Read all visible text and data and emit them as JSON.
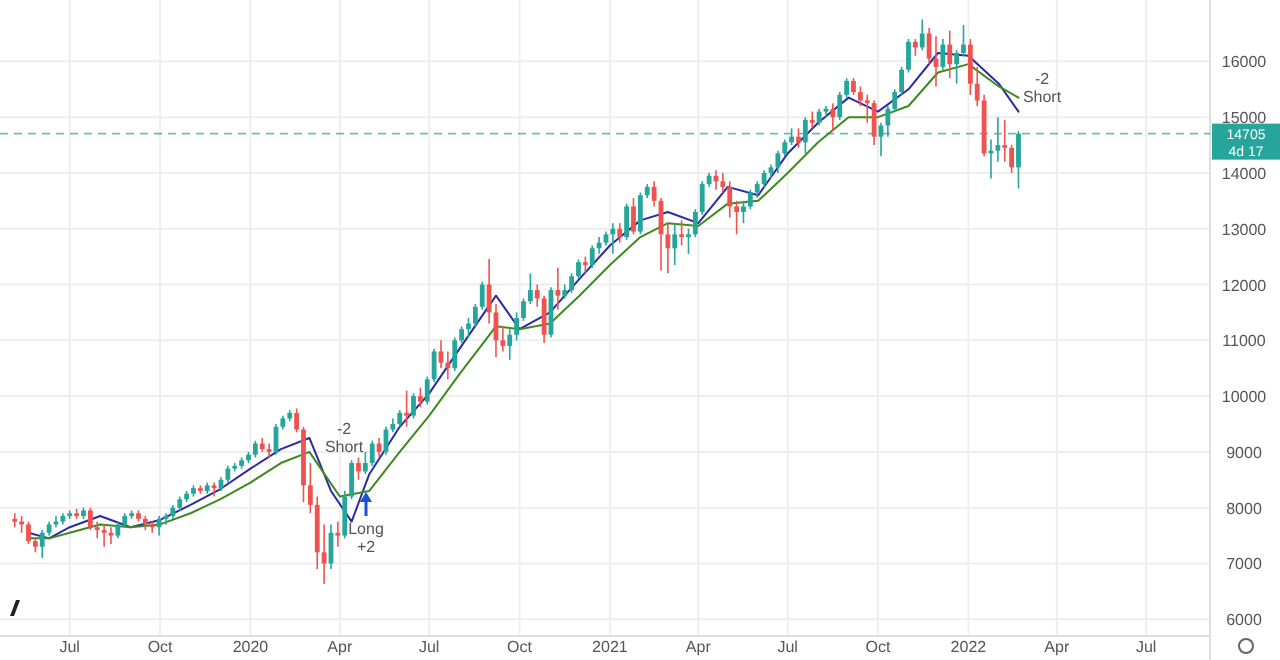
{
  "chart_data": {
    "type": "candlestick",
    "x": [
      "2019-05-06",
      "2019-05-13",
      "2019-05-20",
      "2019-05-27",
      "2019-06-03",
      "2019-06-10",
      "2019-06-17",
      "2019-06-24",
      "2019-07-01",
      "2019-07-08",
      "2019-07-15",
      "2019-07-22",
      "2019-07-29",
      "2019-08-05",
      "2019-08-12",
      "2019-08-19",
      "2019-08-26",
      "2019-09-02",
      "2019-09-09",
      "2019-09-16",
      "2019-09-23",
      "2019-09-30",
      "2019-10-07",
      "2019-10-14",
      "2019-10-21",
      "2019-10-28",
      "2019-11-04",
      "2019-11-11",
      "2019-11-18",
      "2019-11-25",
      "2019-12-02",
      "2019-12-09",
      "2019-12-16",
      "2019-12-23",
      "2019-12-30",
      "2020-01-06",
      "2020-01-13",
      "2020-01-20",
      "2020-01-27",
      "2020-02-03",
      "2020-02-10",
      "2020-02-17",
      "2020-02-24",
      "2020-03-02",
      "2020-03-09",
      "2020-03-16",
      "2020-03-23",
      "2020-03-30",
      "2020-04-06",
      "2020-04-13",
      "2020-04-20",
      "2020-04-27",
      "2020-05-04",
      "2020-05-11",
      "2020-05-18",
      "2020-05-25",
      "2020-06-01",
      "2020-06-08",
      "2020-06-15",
      "2020-06-22",
      "2020-06-29",
      "2020-07-06",
      "2020-07-13",
      "2020-07-20",
      "2020-07-27",
      "2020-08-03",
      "2020-08-10",
      "2020-08-17",
      "2020-08-24",
      "2020-08-31",
      "2020-09-07",
      "2020-09-14",
      "2020-09-21",
      "2020-09-28",
      "2020-10-05",
      "2020-10-12",
      "2020-10-19",
      "2020-10-26",
      "2020-11-02",
      "2020-11-09",
      "2020-11-16",
      "2020-11-23",
      "2020-11-30",
      "2020-12-07",
      "2020-12-14",
      "2020-12-21",
      "2020-12-28",
      "2021-01-04",
      "2021-01-11",
      "2021-01-18",
      "2021-01-25",
      "2021-02-01",
      "2021-02-08",
      "2021-02-15",
      "2021-02-22",
      "2021-03-01",
      "2021-03-08",
      "2021-03-15",
      "2021-03-22",
      "2021-03-29",
      "2021-04-05",
      "2021-04-12",
      "2021-04-19",
      "2021-04-26",
      "2021-05-03",
      "2021-05-10",
      "2021-05-17",
      "2021-05-24",
      "2021-05-31",
      "2021-06-07",
      "2021-06-14",
      "2021-06-21",
      "2021-06-28",
      "2021-07-05",
      "2021-07-12",
      "2021-07-19",
      "2021-07-26",
      "2021-08-02",
      "2021-08-09",
      "2021-08-16",
      "2021-08-23",
      "2021-08-30",
      "2021-09-06",
      "2021-09-13",
      "2021-09-20",
      "2021-09-27",
      "2021-10-04",
      "2021-10-11",
      "2021-10-18",
      "2021-10-25",
      "2021-11-01",
      "2021-11-08",
      "2021-11-15",
      "2021-11-22",
      "2021-11-29",
      "2021-12-06",
      "2021-12-13",
      "2021-12-20",
      "2021-12-27",
      "2022-01-03",
      "2022-01-10",
      "2022-01-17",
      "2022-01-24",
      "2022-01-31",
      "2022-02-07",
      "2022-02-14",
      "2022-02-21"
    ],
    "ohlc": [
      [
        7800,
        7900,
        7650,
        7750
      ],
      [
        7750,
        7850,
        7550,
        7700
      ],
      [
        7700,
        7750,
        7350,
        7400
      ],
      [
        7400,
        7450,
        7200,
        7300
      ],
      [
        7300,
        7600,
        7100,
        7550
      ],
      [
        7550,
        7750,
        7500,
        7700
      ],
      [
        7700,
        7850,
        7650,
        7750
      ],
      [
        7750,
        7900,
        7700,
        7850
      ],
      [
        7850,
        7950,
        7800,
        7900
      ],
      [
        7900,
        7980,
        7800,
        7850
      ],
      [
        7850,
        8000,
        7800,
        7950
      ],
      [
        7950,
        8000,
        7600,
        7650
      ],
      [
        7650,
        7750,
        7450,
        7600
      ],
      [
        7600,
        7700,
        7300,
        7550
      ],
      [
        7550,
        7650,
        7350,
        7500
      ],
      [
        7500,
        7750,
        7450,
        7700
      ],
      [
        7700,
        7900,
        7650,
        7850
      ],
      [
        7850,
        7950,
        7800,
        7900
      ],
      [
        7900,
        7950,
        7750,
        7800
      ],
      [
        7800,
        7850,
        7600,
        7700
      ],
      [
        7700,
        7750,
        7550,
        7650
      ],
      [
        7650,
        7850,
        7500,
        7800
      ],
      [
        7800,
        7900,
        7700,
        7850
      ],
      [
        7850,
        8050,
        7800,
        8000
      ],
      [
        8000,
        8200,
        7950,
        8150
      ],
      [
        8150,
        8300,
        8100,
        8250
      ],
      [
        8250,
        8400,
        8200,
        8350
      ],
      [
        8350,
        8400,
        8250,
        8300
      ],
      [
        8300,
        8450,
        8250,
        8400
      ],
      [
        8400,
        8450,
        8200,
        8350
      ],
      [
        8350,
        8550,
        8300,
        8500
      ],
      [
        8500,
        8750,
        8450,
        8700
      ],
      [
        8700,
        8800,
        8650,
        8750
      ],
      [
        8750,
        8900,
        8700,
        8850
      ],
      [
        8850,
        9000,
        8800,
        8950
      ],
      [
        8950,
        9200,
        8900,
        9150
      ],
      [
        9150,
        9250,
        9000,
        9050
      ],
      [
        9050,
        9150,
        8900,
        9000
      ],
      [
        9000,
        9500,
        8950,
        9450
      ],
      [
        9450,
        9650,
        9400,
        9600
      ],
      [
        9600,
        9750,
        9550,
        9700
      ],
      [
        9700,
        9780,
        9350,
        9400
      ],
      [
        9400,
        9450,
        8100,
        8400
      ],
      [
        8400,
        8800,
        7900,
        8050
      ],
      [
        8050,
        8200,
        6900,
        7200
      ],
      [
        7200,
        7700,
        6630,
        7000
      ],
      [
        7000,
        7700,
        6900,
        7550
      ],
      [
        7550,
        7750,
        7300,
        7500
      ],
      [
        7500,
        8300,
        7450,
        8200
      ],
      [
        8200,
        8850,
        8150,
        8800
      ],
      [
        8800,
        8900,
        8500,
        8650
      ],
      [
        8650,
        9000,
        8600,
        8800
      ],
      [
        8800,
        9200,
        8750,
        9150
      ],
      [
        9150,
        9250,
        8900,
        9000
      ],
      [
        9000,
        9450,
        8950,
        9400
      ],
      [
        9400,
        9600,
        9350,
        9500
      ],
      [
        9500,
        9750,
        9450,
        9700
      ],
      [
        9700,
        10100,
        9450,
        9650
      ],
      [
        9650,
        10050,
        9600,
        10000
      ],
      [
        10000,
        10150,
        9800,
        9900
      ],
      [
        9900,
        10350,
        9850,
        10300
      ],
      [
        10300,
        10850,
        10250,
        10800
      ],
      [
        10800,
        11000,
        10500,
        10600
      ],
      [
        10600,
        10800,
        10300,
        10500
      ],
      [
        10500,
        11050,
        10450,
        11000
      ],
      [
        11000,
        11250,
        10950,
        11200
      ],
      [
        11200,
        11400,
        11050,
        11300
      ],
      [
        11300,
        11650,
        11250,
        11600
      ],
      [
        11600,
        12050,
        11550,
        12000
      ],
      [
        12000,
        12460,
        11300,
        11500
      ],
      [
        11500,
        11650,
        10700,
        11000
      ],
      [
        11000,
        11250,
        10800,
        10900
      ],
      [
        10900,
        11200,
        10650,
        11100
      ],
      [
        11100,
        11500,
        11000,
        11400
      ],
      [
        11400,
        11750,
        11350,
        11700
      ],
      [
        11700,
        12200,
        11650,
        11900
      ],
      [
        11900,
        12000,
        11600,
        11750
      ],
      [
        11750,
        11800,
        10950,
        11100
      ],
      [
        11100,
        11950,
        11050,
        11900
      ],
      [
        11900,
        12300,
        11550,
        11800
      ],
      [
        11800,
        12000,
        11750,
        11900
      ],
      [
        11900,
        12200,
        11850,
        12150
      ],
      [
        12150,
        12450,
        12100,
        12400
      ],
      [
        12400,
        12500,
        12200,
        12350
      ],
      [
        12350,
        12700,
        12300,
        12650
      ],
      [
        12650,
        12850,
        12550,
        12750
      ],
      [
        12750,
        12950,
        12700,
        12900
      ],
      [
        12900,
        13100,
        12550,
        13000
      ],
      [
        13000,
        13100,
        12750,
        12850
      ],
      [
        12850,
        13450,
        12800,
        13400
      ],
      [
        13400,
        13550,
        12900,
        12950
      ],
      [
        12950,
        13650,
        12900,
        13600
      ],
      [
        13600,
        13800,
        13550,
        13750
      ],
      [
        13750,
        13850,
        13400,
        13500
      ],
      [
        13500,
        13550,
        12250,
        12900
      ],
      [
        12900,
        13100,
        12200,
        12650
      ],
      [
        12650,
        13100,
        12350,
        12900
      ],
      [
        12900,
        13150,
        12700,
        12850
      ],
      [
        12850,
        13000,
        12550,
        12900
      ],
      [
        12900,
        13350,
        12850,
        13300
      ],
      [
        13300,
        13850,
        13250,
        13800
      ],
      [
        13800,
        14000,
        13750,
        13950
      ],
      [
        13950,
        14050,
        13700,
        13850
      ],
      [
        13850,
        14000,
        13650,
        13750
      ],
      [
        13750,
        13850,
        13200,
        13400
      ],
      [
        13400,
        13500,
        12900,
        13300
      ],
      [
        13300,
        13500,
        13100,
        13400
      ],
      [
        13400,
        13700,
        13350,
        13650
      ],
      [
        13650,
        13850,
        13550,
        13800
      ],
      [
        13800,
        14050,
        13750,
        14000
      ],
      [
        14000,
        14150,
        13900,
        14100
      ],
      [
        14100,
        14400,
        14000,
        14350
      ],
      [
        14350,
        14600,
        14300,
        14550
      ],
      [
        14550,
        14800,
        14500,
        14650
      ],
      [
        14650,
        14800,
        14450,
        14550
      ],
      [
        14550,
        15000,
        14350,
        14950
      ],
      [
        14950,
        15100,
        14800,
        14900
      ],
      [
        14900,
        15150,
        14850,
        15100
      ],
      [
        15100,
        15200,
        15000,
        15150
      ],
      [
        15150,
        15250,
        14750,
        15000
      ],
      [
        15000,
        15450,
        14950,
        15400
      ],
      [
        15400,
        15700,
        15350,
        15650
      ],
      [
        15650,
        15700,
        15400,
        15450
      ],
      [
        15450,
        15550,
        15200,
        15300
      ],
      [
        15300,
        15400,
        14900,
        15250
      ],
      [
        15250,
        15300,
        14500,
        14650
      ],
      [
        14650,
        14900,
        14300,
        14850
      ],
      [
        14850,
        15200,
        14650,
        15150
      ],
      [
        15150,
        15500,
        15100,
        15450
      ],
      [
        15450,
        15900,
        15400,
        15850
      ],
      [
        15850,
        16400,
        15800,
        16350
      ],
      [
        16350,
        16400,
        16100,
        16250
      ],
      [
        16250,
        16750,
        16200,
        16500
      ],
      [
        16500,
        16600,
        15950,
        16050
      ],
      [
        16050,
        16450,
        15550,
        15900
      ],
      [
        15900,
        16400,
        15850,
        16300
      ],
      [
        16300,
        16550,
        15700,
        15950
      ],
      [
        15950,
        16200,
        15600,
        16150
      ],
      [
        16150,
        16650,
        16100,
        16300
      ],
      [
        16300,
        16400,
        15400,
        15600
      ],
      [
        15600,
        15900,
        15200,
        15300
      ],
      [
        15300,
        15400,
        14300,
        14350
      ],
      [
        14350,
        14600,
        13900,
        14400
      ],
      [
        14400,
        15000,
        14200,
        14500
      ],
      [
        14500,
        14950,
        14200,
        14450
      ],
      [
        14450,
        14500,
        14000,
        14100
      ],
      [
        14100,
        14750,
        13720,
        14705
      ]
    ],
    "colors": [
      "#ef5350",
      "#ef5350",
      "#ef5350",
      "#ef5350",
      "#26a69a",
      "#26a69a",
      "#26a69a",
      "#26a69a",
      "#26a69a",
      "#ef5350",
      "#26a69a",
      "#ef5350",
      "#ef5350",
      "#ef5350",
      "#ef5350",
      "#26a69a",
      "#26a69a",
      "#26a69a",
      "#ef5350",
      "#ef5350",
      "#ef5350",
      "#26a69a",
      "#26a69a",
      "#26a69a",
      "#26a69a",
      "#26a69a",
      "#26a69a",
      "#ef5350",
      "#26a69a",
      "#ef5350",
      "#26a69a",
      "#26a69a",
      "#26a69a",
      "#26a69a",
      "#26a69a",
      "#26a69a",
      "#ef5350",
      "#ef5350",
      "#26a69a",
      "#26a69a",
      "#26a69a",
      "#ef5350",
      "#ef5350",
      "#ef5350",
      "#ef5350",
      "#ef5350",
      "#26a69a",
      "#ef5350",
      "#26a69a",
      "#26a69a",
      "#ef5350",
      "#26a69a",
      "#26a69a",
      "#ef5350",
      "#26a69a",
      "#26a69a",
      "#26a69a",
      "#ef5350",
      "#26a69a",
      "#ef5350",
      "#26a69a",
      "#26a69a",
      "#ef5350",
      "#ef5350",
      "#26a69a",
      "#26a69a",
      "#26a69a",
      "#26a69a",
      "#26a69a",
      "#ef5350",
      "#ef5350",
      "#ef5350",
      "#26a69a",
      "#26a69a",
      "#26a69a",
      "#26a69a",
      "#ef5350",
      "#ef5350",
      "#26a69a",
      "#ef5350",
      "#26a69a",
      "#26a69a",
      "#26a69a",
      "#ef5350",
      "#26a69a",
      "#26a69a",
      "#26a69a",
      "#26a69a",
      "#ef5350",
      "#26a69a",
      "#ef5350",
      "#26a69a",
      "#26a69a",
      "#ef5350",
      "#ef5350",
      "#ef5350",
      "#26a69a",
      "#ef5350",
      "#26a69a",
      "#26a69a",
      "#26a69a",
      "#26a69a",
      "#ef5350",
      "#ef5350",
      "#ef5350",
      "#ef5350",
      "#26a69a",
      "#26a69a",
      "#26a69a",
      "#26a69a",
      "#26a69a",
      "#26a69a",
      "#26a69a",
      "#26a69a",
      "#ef5350",
      "#26a69a",
      "#ef5350",
      "#26a69a",
      "#26a69a",
      "#ef5350",
      "#26a69a",
      "#26a69a",
      "#ef5350",
      "#ef5350",
      "#ef5350",
      "#ef5350",
      "#26a69a",
      "#26a69a",
      "#26a69a",
      "#26a69a",
      "#26a69a",
      "#ef5350",
      "#26a69a",
      "#ef5350",
      "#ef5350",
      "#26a69a",
      "#ef5350",
      "#26a69a",
      "#26a69a",
      "#ef5350",
      "#ef5350",
      "#ef5350",
      "#26a69a",
      "#26a69a",
      "#ef5350",
      "#ef5350",
      "#26a69a"
    ],
    "series": [
      {
        "type": "line",
        "color": "#2b2ba6",
        "x": [
          "2019-05-20",
          "2019-06-10",
          "2019-07-01",
          "2019-08-01",
          "2019-09-01",
          "2019-10-01",
          "2019-11-01",
          "2019-12-01",
          "2020-01-01",
          "2020-02-01",
          "2020-03-01",
          "2020-03-23",
          "2020-04-13",
          "2020-05-01",
          "2020-06-01",
          "2020-07-01",
          "2020-08-01",
          "2020-09-07",
          "2020-10-01",
          "2020-11-01",
          "2020-12-01",
          "2021-01-01",
          "2021-02-01",
          "2021-03-01",
          "2021-04-01",
          "2021-05-01",
          "2021-06-01",
          "2021-07-01",
          "2021-08-01",
          "2021-09-01",
          "2021-10-01",
          "2021-11-01",
          "2021-12-01",
          "2022-01-01",
          "2022-02-01",
          "2022-02-21"
        ],
        "values": [
          7550,
          7450,
          7650,
          7850,
          7650,
          7780,
          8050,
          8330,
          8700,
          9050,
          9250,
          8300,
          7750,
          8600,
          9450,
          10050,
          10850,
          11800,
          11200,
          11500,
          12100,
          12700,
          13150,
          13300,
          13100,
          13750,
          13600,
          14350,
          14900,
          15350,
          15100,
          15500,
          16150,
          16100,
          15600,
          15100
        ]
      },
      {
        "type": "line",
        "color": "#3d8b1f",
        "x": [
          "2019-05-20",
          "2019-06-10",
          "2019-07-01",
          "2019-08-01",
          "2019-09-01",
          "2019-10-01",
          "2019-11-01",
          "2019-12-01",
          "2020-01-01",
          "2020-02-01",
          "2020-03-01",
          "2020-04-01",
          "2020-05-01",
          "2020-06-01",
          "2020-07-01",
          "2020-08-01",
          "2020-09-07",
          "2020-10-01",
          "2020-11-01",
          "2020-12-01",
          "2021-01-01",
          "2021-02-01",
          "2021-03-01",
          "2021-04-01",
          "2021-05-01",
          "2021-06-01",
          "2021-07-01",
          "2021-08-01",
          "2021-09-01",
          "2021-10-01",
          "2021-11-01",
          "2021-12-01",
          "2022-01-01",
          "2022-02-01",
          "2022-02-21"
        ],
        "values": [
          7450,
          7450,
          7550,
          7700,
          7650,
          7700,
          7900,
          8150,
          8450,
          8800,
          9000,
          8200,
          8300,
          9000,
          9650,
          10400,
          11250,
          11200,
          11300,
          11800,
          12350,
          12850,
          13100,
          13050,
          13450,
          13500,
          14000,
          14550,
          15000,
          15000,
          15200,
          15800,
          15950,
          15550,
          15350
        ]
      }
    ],
    "xlim": [
      "2019-04-21",
      "2022-09-04"
    ],
    "xticks": [
      {
        "value": "2019-07-01",
        "label": "Jul"
      },
      {
        "value": "2019-10-01",
        "label": "Oct"
      },
      {
        "value": "2020-01-01",
        "label": "2020"
      },
      {
        "value": "2020-04-01",
        "label": "Apr"
      },
      {
        "value": "2020-07-01",
        "label": "Jul"
      },
      {
        "value": "2020-10-01",
        "label": "Oct"
      },
      {
        "value": "2021-01-01",
        "label": "2021"
      },
      {
        "value": "2021-04-01",
        "label": "Apr"
      },
      {
        "value": "2021-07-01",
        "label": "Jul"
      },
      {
        "value": "2021-10-01",
        "label": "Oct"
      },
      {
        "value": "2022-01-01",
        "label": "2022"
      },
      {
        "value": "2022-04-01",
        "label": "Apr"
      },
      {
        "value": "2022-07-01",
        "label": "Jul"
      }
    ],
    "ylim": [
      5700,
      17100
    ],
    "yticks": [
      6000,
      7000,
      8000,
      9000,
      10000,
      11000,
      12000,
      13000,
      14000,
      15000,
      16000
    ],
    "grid": true,
    "ref_lines": [
      {
        "axis": "y",
        "value": 14705,
        "label": "14705",
        "color": "#26a69a",
        "line_style": "dashed"
      }
    ],
    "annotations": [
      "-2\nShort",
      "Long\n+2",
      "-2\nShort",
      "4d 17"
    ]
  }
}
